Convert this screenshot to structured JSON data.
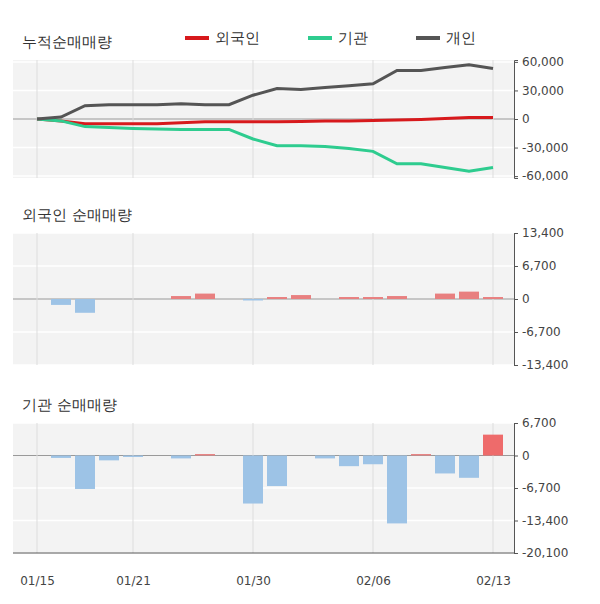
{
  "chart_data": [
    {
      "type": "line",
      "title": "누적순매매량",
      "categories": [
        "01/15",
        null,
        null,
        null,
        "01/21",
        null,
        null,
        null,
        null,
        "01/30",
        null,
        null,
        null,
        null,
        "02/06",
        null,
        null,
        null,
        null,
        "02/13"
      ],
      "series": [
        {
          "name": "외국인",
          "color": "#d7191c",
          "values": [
            0,
            -2000,
            -5000,
            -5000,
            -5000,
            -5000,
            -4000,
            -3000,
            -3000,
            -3000,
            -3000,
            -2500,
            -2000,
            -2000,
            -1500,
            -1000,
            -500,
            500,
            1500,
            1500
          ]
        },
        {
          "name": "기관",
          "color": "#2ecc8f",
          "values": [
            0,
            -2000,
            -8000,
            -9000,
            -10000,
            -10500,
            -11000,
            -11000,
            -11000,
            -21000,
            -28000,
            -28000,
            -29000,
            -31000,
            -34000,
            -47000,
            -47000,
            -51000,
            -55000,
            -51000
          ]
        },
        {
          "name": "개인",
          "color": "#555555",
          "values": [
            0,
            2000,
            14000,
            15000,
            15000,
            15000,
            16000,
            15000,
            15000,
            25000,
            32000,
            31000,
            33000,
            35000,
            37000,
            51000,
            51000,
            54000,
            57000,
            53000
          ]
        }
      ],
      "ylim": [
        -62000,
        62000
      ],
      "yticks": [
        {
          "value": 60000,
          "label": "60,000"
        },
        {
          "value": 30000,
          "label": "30,000"
        },
        0,
        {
          "value": -30000,
          "label": "-30,000"
        },
        {
          "value": -60000,
          "label": "-60,000"
        }
      ],
      "grid": true,
      "legend": "top",
      "tick_labels": "y"
    },
    {
      "type": "bar",
      "title": "외국인 순매매량",
      "categories": [
        "01/15",
        null,
        null,
        null,
        "01/21",
        null,
        null,
        null,
        null,
        "01/30",
        null,
        null,
        null,
        null,
        "02/06",
        null,
        null,
        null,
        null,
        "02/13"
      ],
      "values": [
        0,
        -1200,
        -2800,
        0,
        0,
        0,
        600,
        1100,
        0,
        -300,
        400,
        800,
        0,
        400,
        400,
        600,
        0,
        1100,
        1500,
        400
      ],
      "colors": [
        "#9dc3e6",
        "#9dc3e6",
        "#9dc3e6",
        "#9dc3e6",
        "#9dc3e6",
        "#9dc3e6",
        "#e88080",
        "#e88080",
        "#9dc3e6",
        "#9dc3e6",
        "#e88080",
        "#e88080",
        "#9dc3e6",
        "#e88080",
        "#e88080",
        "#e88080",
        "#9dc3e6",
        "#e88080",
        "#e88080",
        "#e88080"
      ],
      "ylim": [
        -13400,
        13400
      ],
      "yticks": [
        {
          "value": 13400,
          "label": "13,400"
        },
        {
          "value": 6700,
          "label": "6,700"
        },
        0,
        {
          "value": -6700,
          "label": "-6,700"
        },
        {
          "value": -13400,
          "label": "-13,400"
        }
      ],
      "grid": true,
      "tick_labels": "y"
    },
    {
      "type": "bar",
      "title": "기관 순매매량",
      "categories": [
        "01/15",
        null,
        null,
        null,
        "01/21",
        null,
        null,
        null,
        null,
        "01/30",
        null,
        null,
        null,
        null,
        "02/06",
        null,
        null,
        null,
        null,
        "02/13"
      ],
      "values": [
        0,
        -500,
        -6900,
        -1000,
        -300,
        0,
        -600,
        300,
        0,
        -9900,
        -6300,
        0,
        -600,
        -2200,
        -1800,
        -14000,
        300,
        -3700,
        -4600,
        4300
      ],
      "colors": [
        "#9dc3e6",
        "#9dc3e6",
        "#9dc3e6",
        "#9dc3e6",
        "#9dc3e6",
        "#9dc3e6",
        "#9dc3e6",
        "#e88080",
        "#9dc3e6",
        "#9dc3e6",
        "#9dc3e6",
        "#9dc3e6",
        "#9dc3e6",
        "#9dc3e6",
        "#9dc3e6",
        "#9dc3e6",
        "#e88080",
        "#9dc3e6",
        "#9dc3e6",
        "#ee6b6b"
      ],
      "ylim": [
        -20100,
        6700
      ],
      "yticks": [
        {
          "value": 6700,
          "label": "6,700"
        },
        0,
        {
          "value": -6700,
          "label": "-6,700"
        },
        {
          "value": -13400,
          "label": "-13,400"
        },
        {
          "value": -20100,
          "label": "-20,100"
        }
      ],
      "grid": true,
      "tick_labels": true
    }
  ]
}
